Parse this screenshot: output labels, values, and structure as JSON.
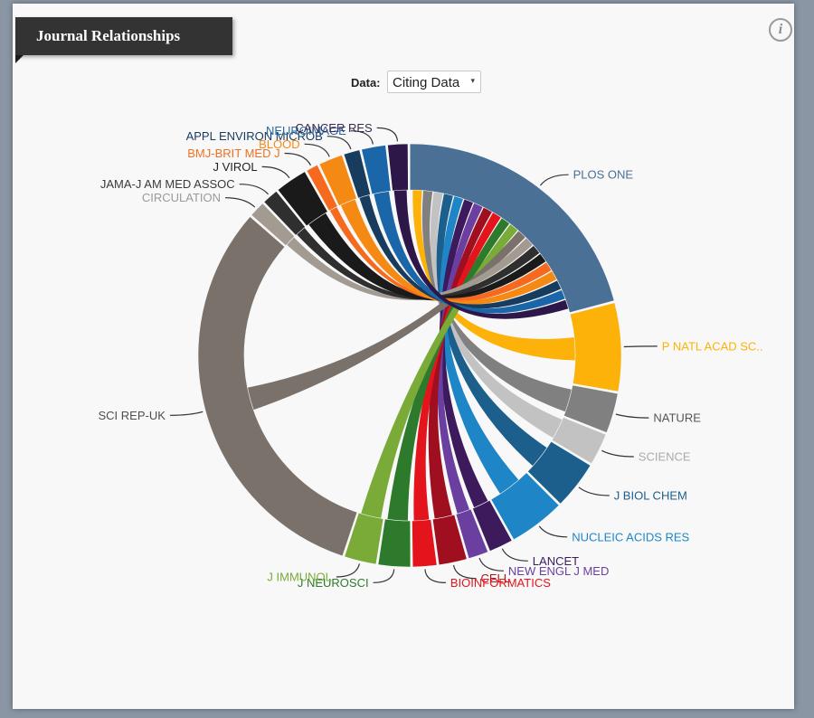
{
  "panel": {
    "title": "Journal Relationships",
    "info_icon": "i"
  },
  "controls": {
    "data_label": "Data:",
    "data_selected": "Citing Data",
    "data_caret": "▾"
  },
  "chart_data": {
    "type": "chord",
    "title": "Journal Relationships",
    "focus": "PLOS ONE",
    "journals": [
      {
        "name": "PLOS ONE",
        "value": 34,
        "color": "#4a7096"
      },
      {
        "name": "P NATL ACAD SC..",
        "value": 11,
        "color": "#fdb209",
        "label_color": "#fdb209"
      },
      {
        "name": "NATURE",
        "value": 5,
        "color": "#808080",
        "label_color": "#555555"
      },
      {
        "name": "SCIENCE",
        "value": 4,
        "color": "#c2c2c2",
        "label_color": "#aaaaaa"
      },
      {
        "name": "J BIOL CHEM",
        "value": 6,
        "color": "#1c5e8c",
        "label_color": "#1c5e8c"
      },
      {
        "name": "NUCLEIC ACIDS RES",
        "value": 7,
        "color": "#1e86c6",
        "label_color": "#1e86c6"
      },
      {
        "name": "LANCET",
        "value": 3,
        "color": "#3c1a5c",
        "label_color": "#3c1a5c"
      },
      {
        "name": "NEW ENGL J MED",
        "value": 2.5,
        "color": "#6b3fa0",
        "label_color": "#6b3fa0"
      },
      {
        "name": "CELL",
        "value": 3.5,
        "color": "#a00f1f",
        "label_color": "#b0141c"
      },
      {
        "name": "BIOINFORMATICS",
        "value": 3,
        "color": "#e4141c",
        "label_color": "#e4141c"
      },
      {
        "name": "J NEUROSCI",
        "value": 4,
        "color": "#2d7a2c",
        "label_color": "#2d7a2c"
      },
      {
        "name": "J IMMUNOL",
        "value": 4,
        "color": "#7aab38",
        "label_color": "#7aab38"
      },
      {
        "name": "SCI REP-UK",
        "value": 51,
        "color": "#79716a",
        "label_color": "#4e4e4e"
      },
      {
        "name": "CIRCULATION",
        "value": 2,
        "color": "#a39a92",
        "label_color": "#9a9a9a"
      },
      {
        "name": "JAMA-J AM MED ASSOC",
        "value": 2,
        "color": "#2f2f2f",
        "label_color": "#3a3a3a"
      },
      {
        "name": "J VIROL",
        "value": 4,
        "color": "#1a1a1a",
        "label_color": "#222222"
      },
      {
        "name": "BMJ-BRIT MED J",
        "value": 1.5,
        "color": "#f56a1e",
        "label_color": "#f07020"
      },
      {
        "name": "BLOOD",
        "value": 3,
        "color": "#f48a14",
        "label_color": "#f48a14"
      },
      {
        "name": "APPL ENVIRON MICROB",
        "value": 2,
        "color": "#173c5e",
        "label_color": "#173c5e"
      },
      {
        "name": "NEUROIMAGE",
        "value": 3,
        "color": "#1a66a8",
        "label_color": "#2a6aa4"
      },
      {
        "name": "CANCER RES",
        "value": 2.5,
        "color": "#2c1748",
        "label_color": "#3a2850"
      }
    ]
  }
}
